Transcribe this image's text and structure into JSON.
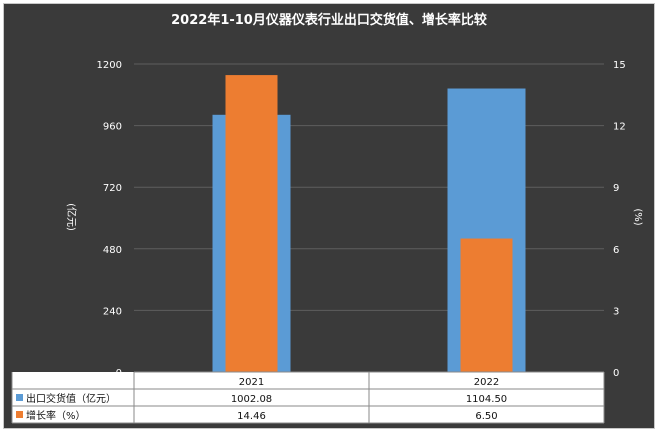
{
  "chart_data": {
    "type": "bar",
    "title": "2022年1-10月仪器仪表行业出口交货值、增长率比较",
    "categories": [
      "2021",
      "2022"
    ],
    "series": [
      {
        "name": "出口交货值（亿元）",
        "axis": "left",
        "values": [
          1002.08,
          1104.5
        ],
        "labels": [
          "1002.08",
          "1104.50"
        ],
        "color": "#5b9bd5"
      },
      {
        "name": "增长率（%）",
        "axis": "right",
        "values": [
          14.46,
          6.5
        ],
        "labels": [
          "14.46",
          "6.50"
        ],
        "color": "#ed7d31"
      }
    ],
    "ylabel": "(亿元)",
    "y2label": "(%)",
    "ylim": [
      0,
      1200
    ],
    "yticks": [
      "0",
      "240",
      "480",
      "720",
      "960",
      "1200"
    ],
    "y2lim": [
      0,
      15
    ],
    "y2ticks": [
      "0",
      "3",
      "6",
      "9",
      "12",
      "15"
    ],
    "grid": true,
    "legend": "data-table"
  },
  "colors": {
    "background": "#3a3a3a",
    "grid": "#5e5e5e",
    "text": "#ffffff",
    "table_border": "#8a8a8a",
    "table_bg": "#ffffff",
    "table_text": "#111111"
  }
}
